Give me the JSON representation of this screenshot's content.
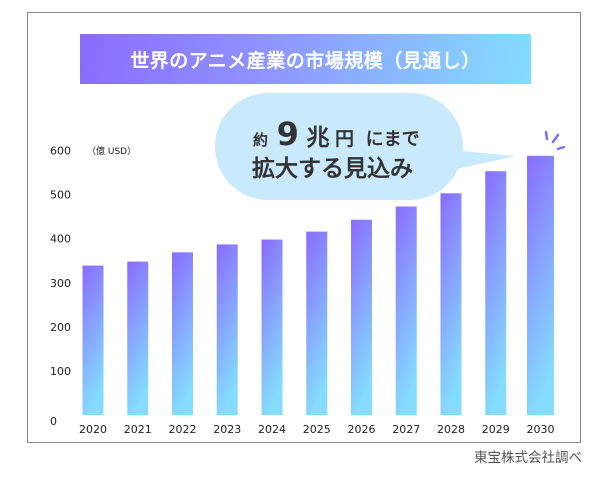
{
  "title": "世界のアニメ産業の市場規模（見通し）",
  "source": "東宝株式会社調べ",
  "callout": {
    "line1": {
      "prefix": "約",
      "number": "9",
      "unit1": "兆",
      "unit2": "円",
      "suffix": "にまで"
    },
    "line2": "拡大する見込み"
  },
  "colors": {
    "bar_top": "#8a6bff",
    "bar_bottom": "#84dcff",
    "bubble": "#c9e9fc",
    "sparkle": "#7b72f5"
  },
  "chart_data": {
    "type": "bar",
    "title": "世界のアニメ産業の市場規模（見通し）",
    "xlabel": "",
    "ylabel": "（億 USD）",
    "ylim": [
      0,
      600
    ],
    "yticks": [
      "0",
      "100",
      "200",
      "300",
      "400",
      "500",
      "600"
    ],
    "grid": false,
    "categories": [
      "2020",
      "2021",
      "2022",
      "2023",
      "2024",
      "2025",
      "2026",
      "2027",
      "2028",
      "2029",
      "2030"
    ],
    "values": [
      339,
      348,
      369,
      387,
      398,
      416,
      443,
      473,
      503,
      553,
      588
    ],
    "highlight": "2030"
  }
}
